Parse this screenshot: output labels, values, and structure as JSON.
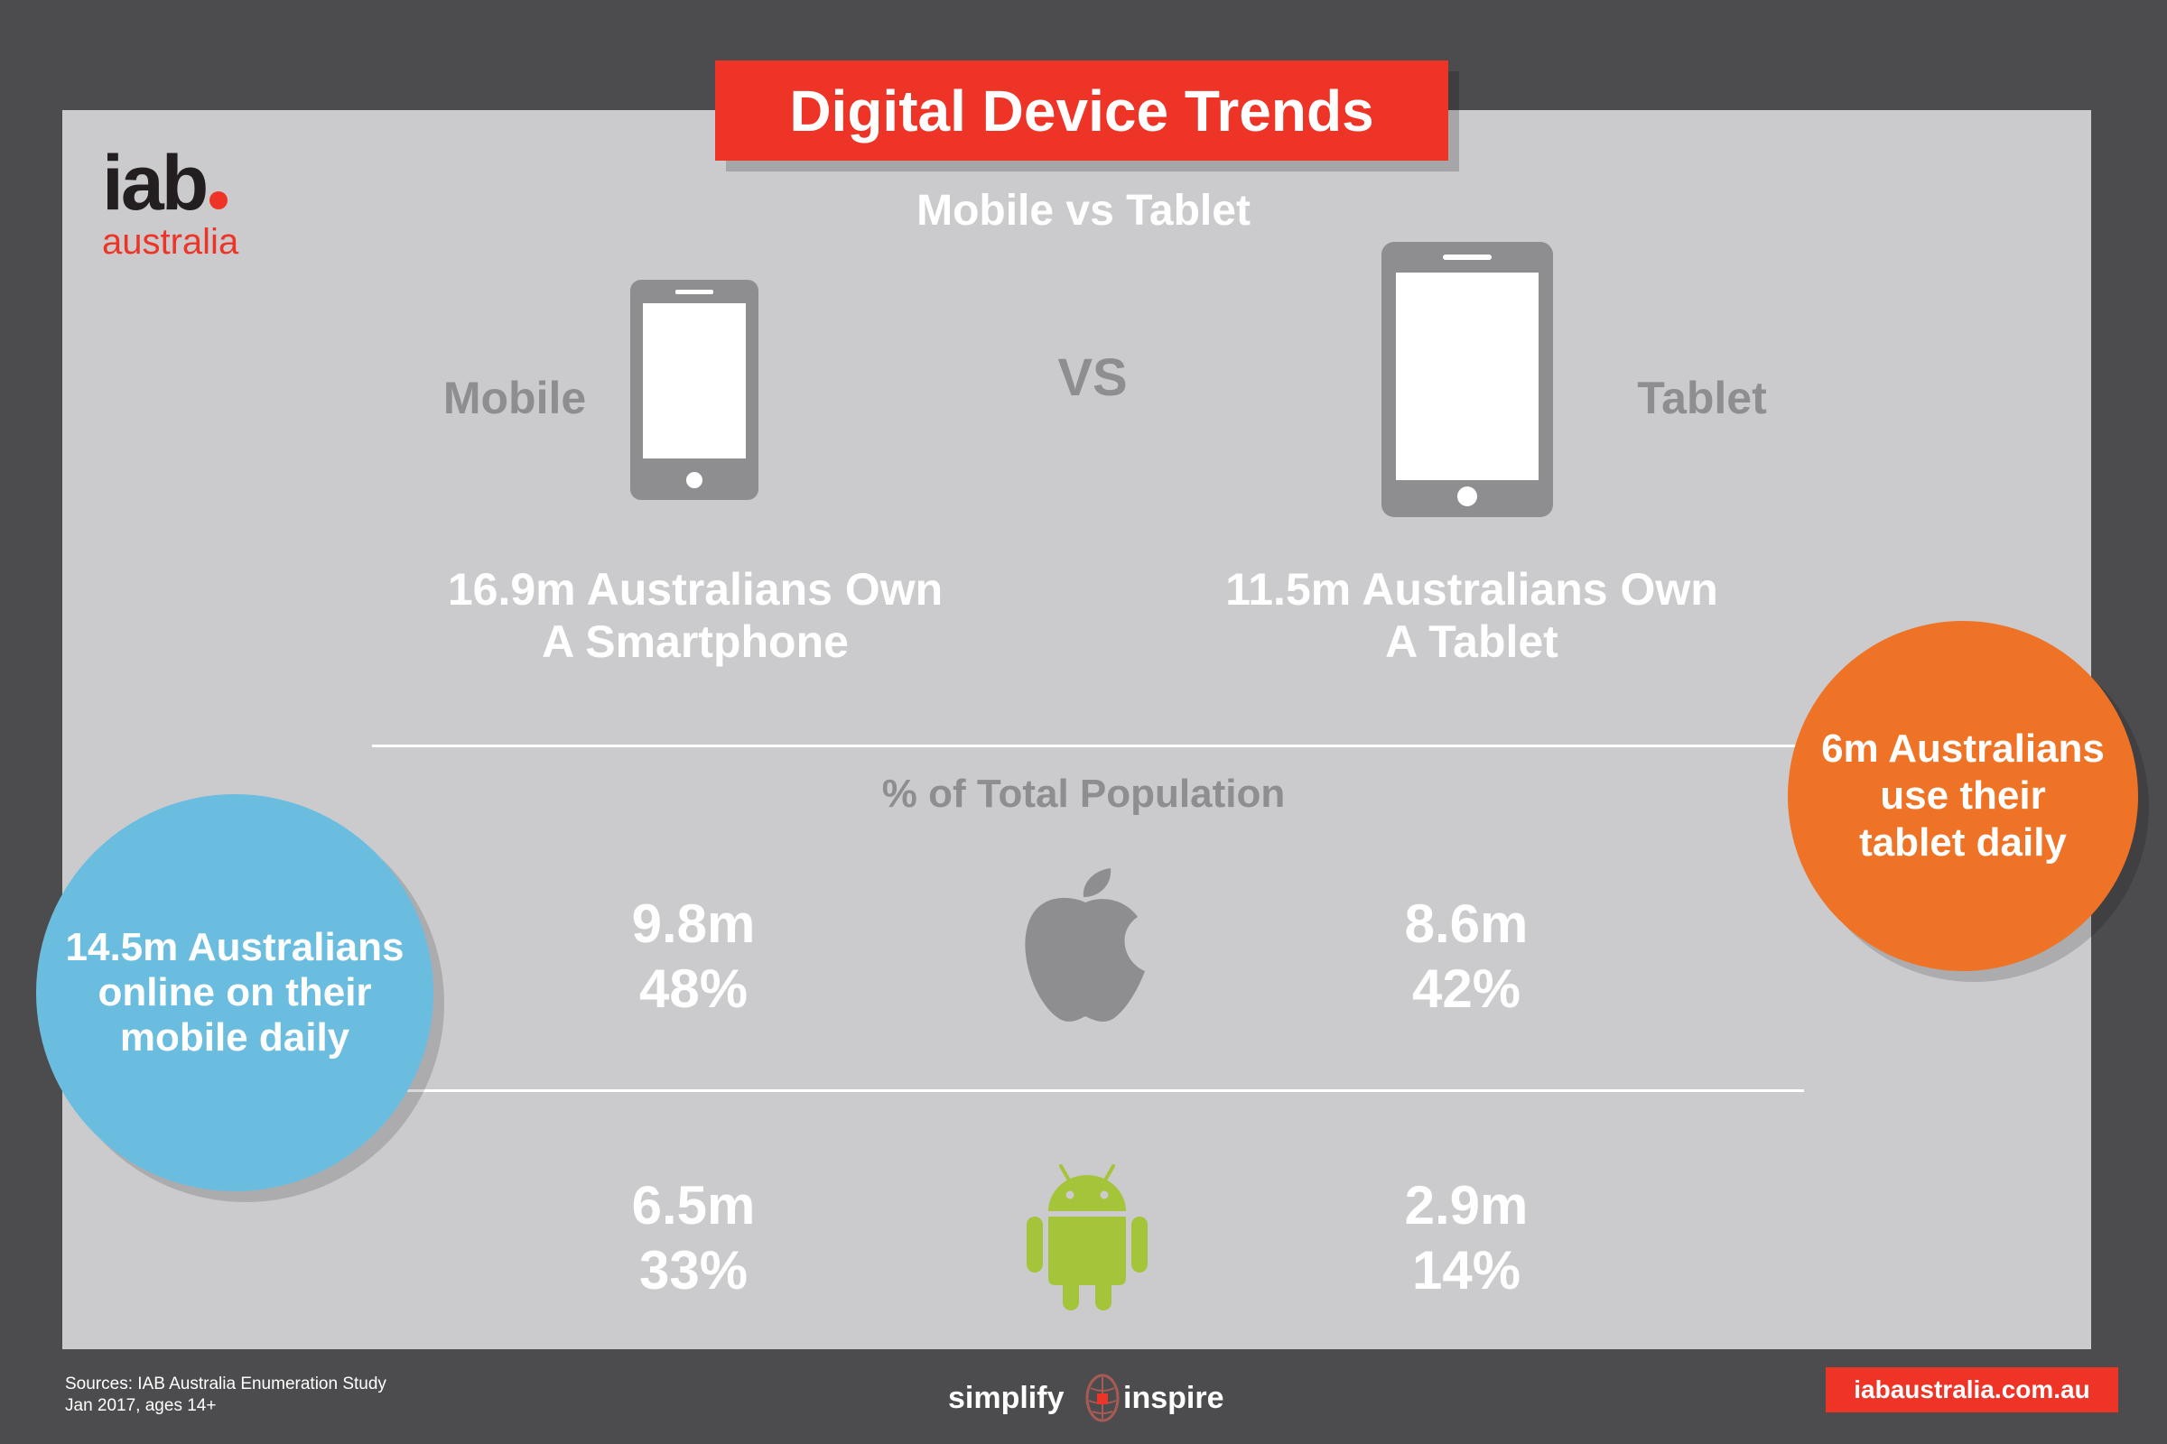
{
  "header": {
    "title": "Digital Device Trends"
  },
  "logo": {
    "main": "iab",
    "sub": "australia"
  },
  "comparison": {
    "subtitle": "Mobile vs Tablet",
    "vs": "VS",
    "mobile": {
      "label": "Mobile",
      "own_line1": "16.9m Australians Own",
      "own_line2": "A Smartphone"
    },
    "tablet": {
      "label": "Tablet",
      "own_line1": "11.5m Australians Own",
      "own_line2": "A Tablet"
    }
  },
  "population": {
    "title": "% of Total Population",
    "apple": {
      "mobile_count": "9.8m",
      "mobile_pct": "48%",
      "tablet_count": "8.6m",
      "tablet_pct": "42%"
    },
    "android": {
      "mobile_count": "6.5m",
      "mobile_pct": "33%",
      "tablet_count": "2.9m",
      "tablet_pct": "14%"
    }
  },
  "callouts": {
    "mobile_daily": {
      "line1": "14.5m Australians",
      "line2": "online on their",
      "line3": "mobile daily"
    },
    "tablet_daily": {
      "line1": "6m Australians",
      "line2": "use their",
      "line3": "tablet daily"
    }
  },
  "footer": {
    "sources_line1": "Sources: IAB Australia Enumeration Study",
    "sources_line2": "Jan 2017, ages 14+",
    "tagline_left": "simplify",
    "tagline_right": "inspire",
    "url": "iabaustralia.com.au"
  },
  "colors": {
    "red": "#ee3427",
    "orange": "#ee7326",
    "blue": "#6bbde0",
    "android_green": "#a4c439",
    "icon_grey": "#8e8e90"
  }
}
